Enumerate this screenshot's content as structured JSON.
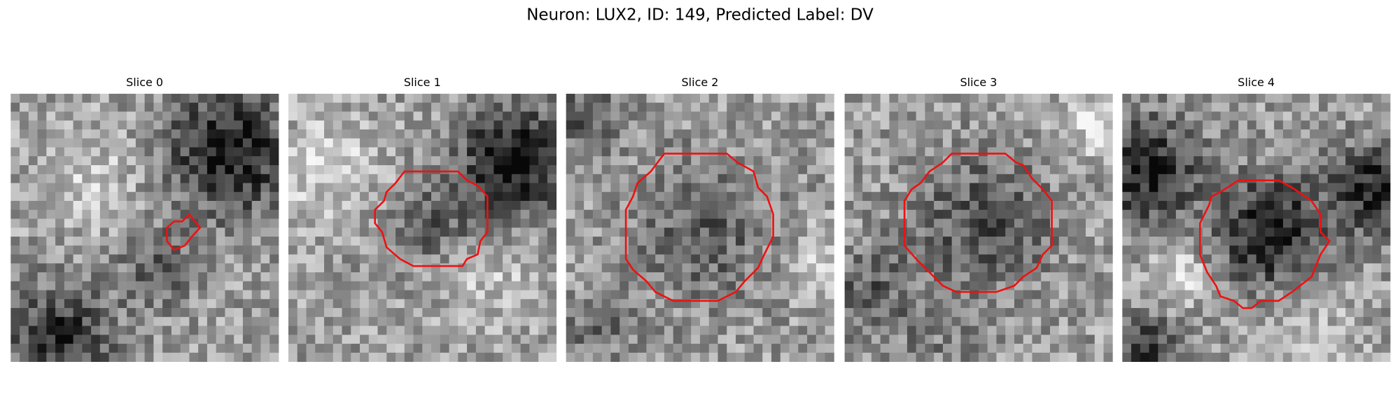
{
  "title": "Neuron: LUX2, ID: 149, Predicted Label: DV",
  "panels": [
    {
      "title": "Slice 0"
    },
    {
      "title": "Slice 1"
    },
    {
      "title": "Slice 2"
    },
    {
      "title": "Slice 3"
    },
    {
      "title": "Slice 4"
    }
  ]
}
